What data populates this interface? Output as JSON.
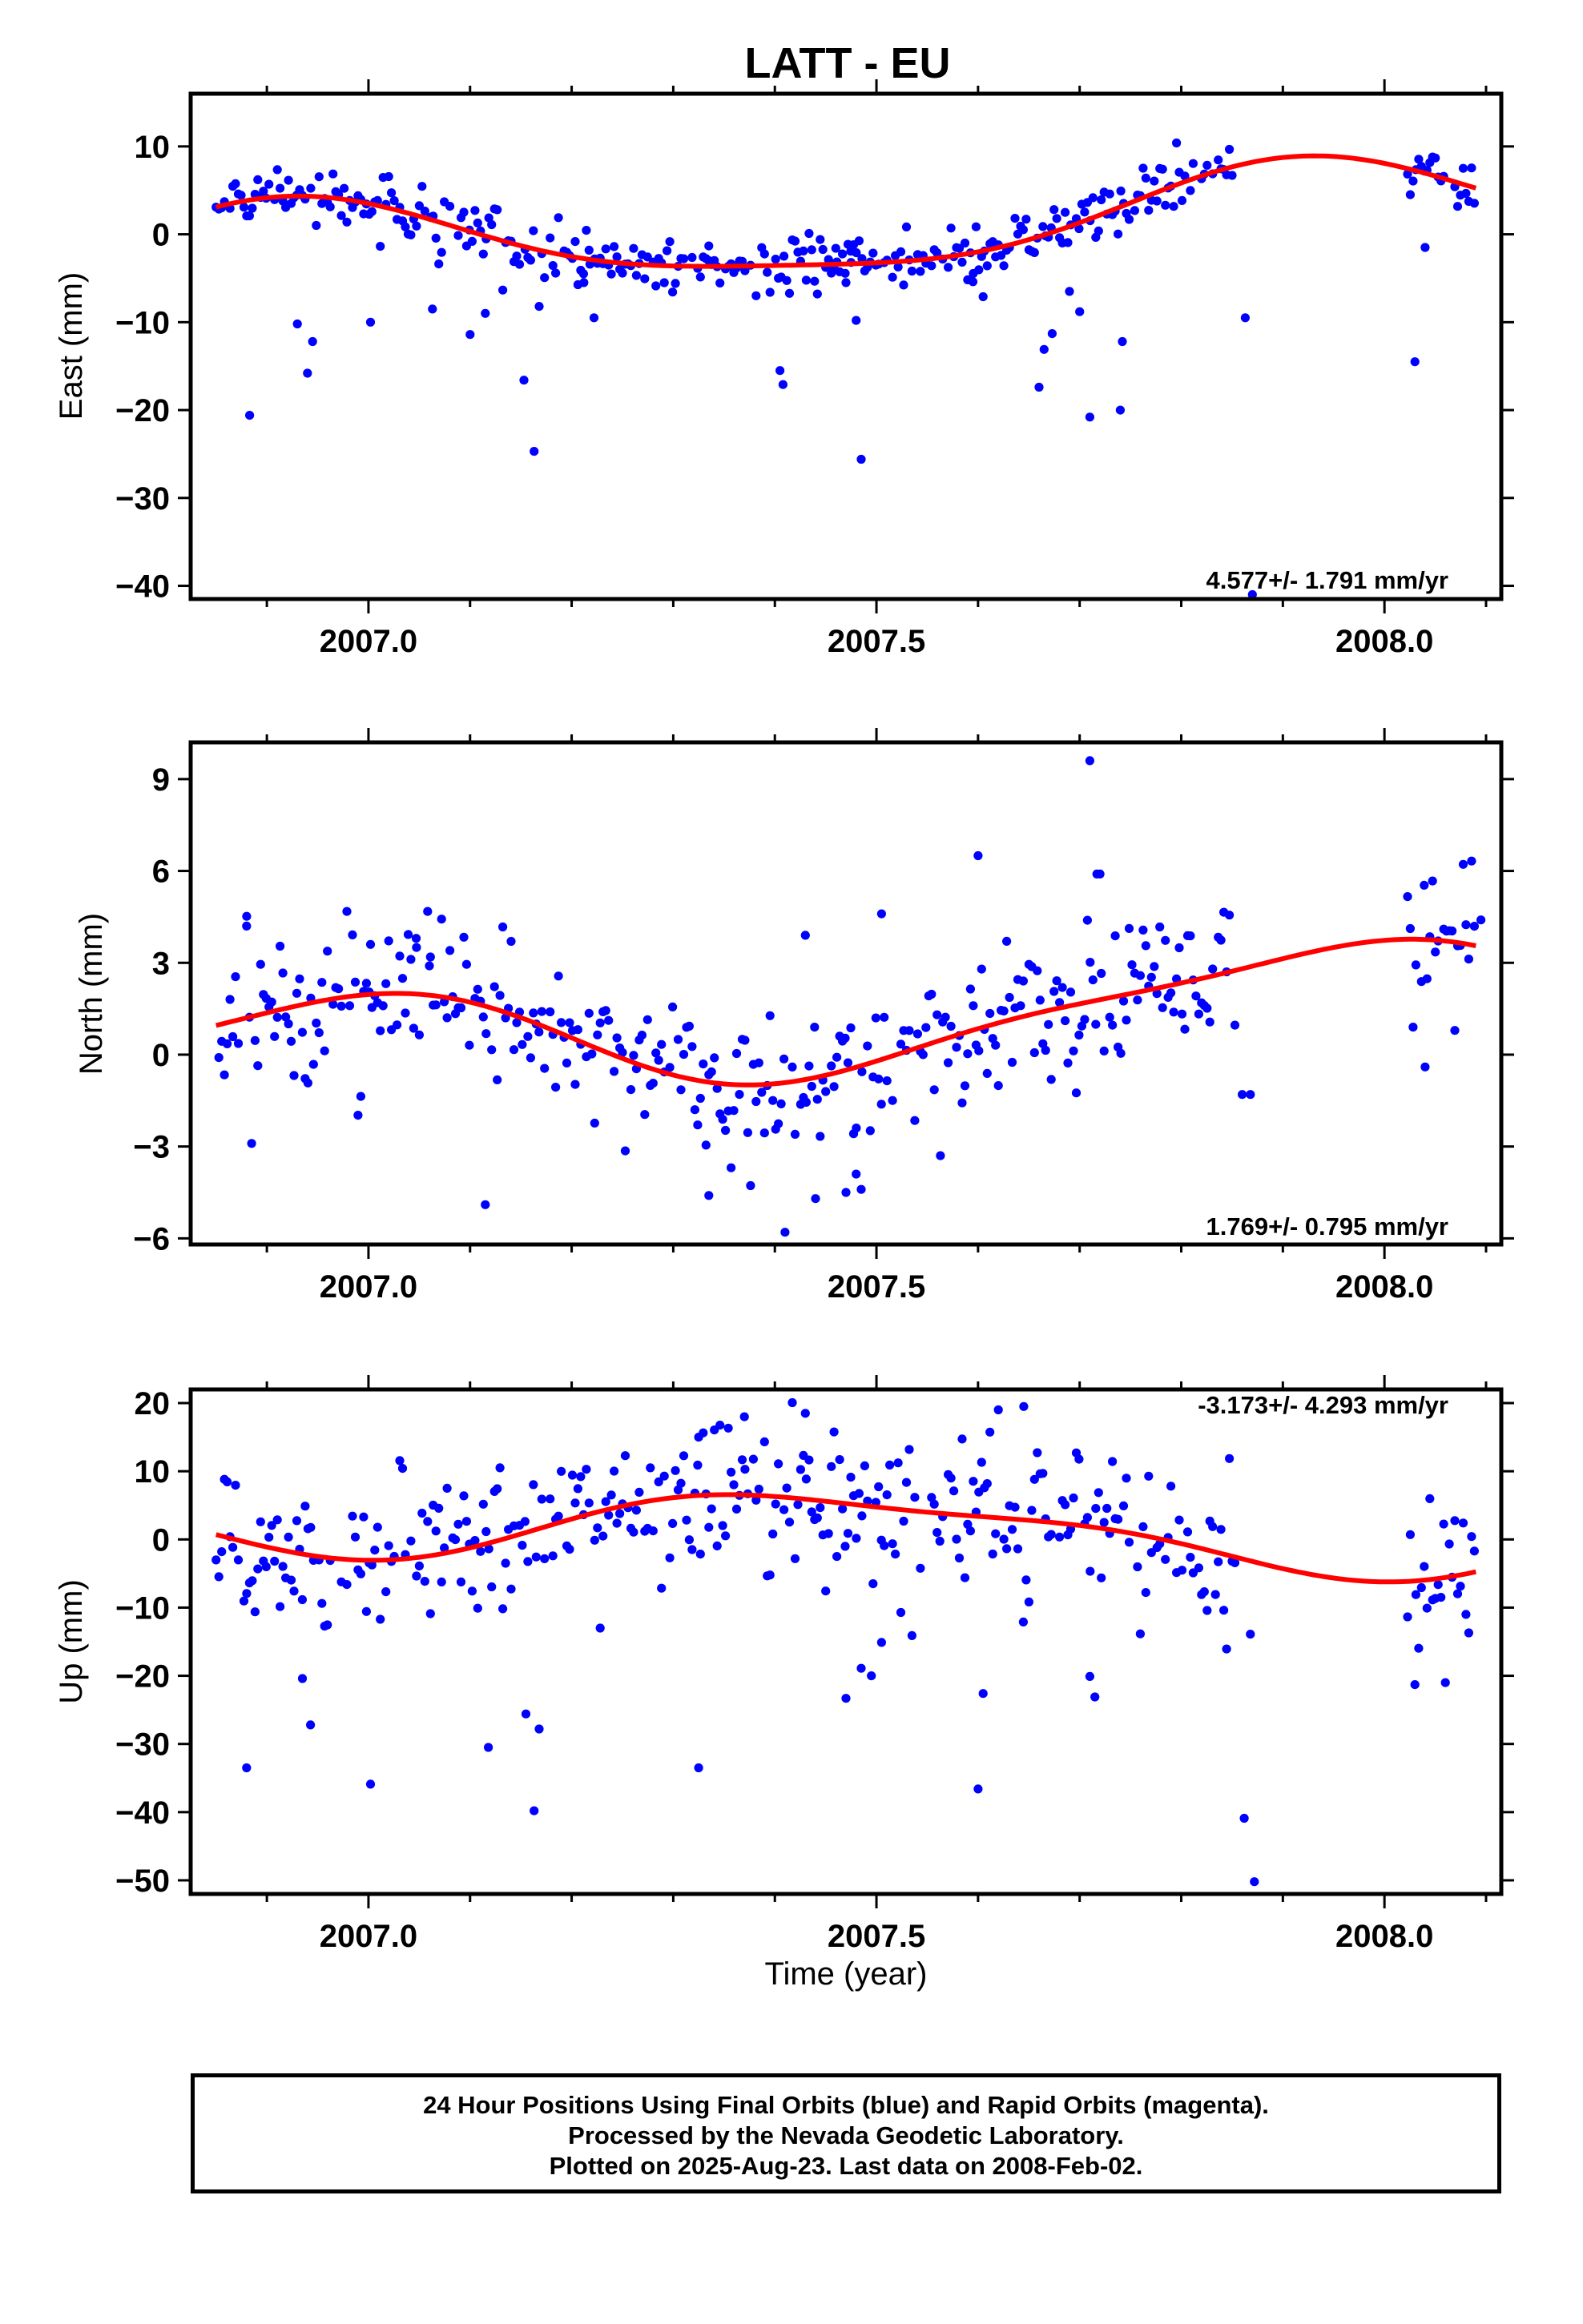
{
  "figure": {
    "title": "LATT - EU",
    "xlabel": "Time (year)"
  },
  "caption": {
    "line1": "24 Hour Positions Using Final Orbits (blue) and Rapid Orbits (magenta).",
    "line2": "Processed by the Nevada Geodetic Laboratory.",
    "line3": "Plotted on 2025-Aug-23. Last data on 2008-Feb-02."
  },
  "colors": {
    "points": "#0000ff",
    "model": "#ff0000",
    "axes": "#000000"
  },
  "chart_data": [
    {
      "type": "scatter",
      "ylabel": "East (mm)",
      "xlim": [
        2006.825,
        2008.115
      ],
      "ylim": [
        -41.5,
        16
      ],
      "xticks": [
        2007.0,
        2007.5,
        2008.0
      ],
      "xtick_labels": [
        "2007.0",
        "2007.5",
        "2008.0"
      ],
      "yticks": [
        10,
        0,
        -10,
        -20,
        -30,
        -40
      ],
      "ytick_labels": [
        "10",
        "0",
        "−10",
        "−20",
        "−30",
        "−40"
      ],
      "rate_label": "4.577+/- 1.791 mm/yr",
      "rate_position": "bottom-right",
      "points": {
        "x0": 2006.85,
        "x1": 2007.855,
        "x2": 2008.02,
        "x3": 2008.09,
        "gap_start": 2007.86,
        "gap_end": 2008.01,
        "step": 0.00274,
        "noise": 1.6
      },
      "outliers": [
        [
          2006.883,
          -20.6
        ],
        [
          2006.93,
          -10.2
        ],
        [
          2006.94,
          -15.8
        ],
        [
          2006.945,
          -12.2
        ],
        [
          2007.002,
          -10.0
        ],
        [
          2007.063,
          -8.5
        ],
        [
          2007.1,
          -11.4
        ],
        [
          2007.115,
          -9.0
        ],
        [
          2007.153,
          -16.6
        ],
        [
          2007.163,
          -24.7
        ],
        [
          2007.168,
          -8.2
        ],
        [
          2007.212,
          -5.5
        ],
        [
          2007.222,
          -9.5
        ],
        [
          2007.218,
          -3.4
        ],
        [
          2007.335,
          -3.0
        ],
        [
          2007.405,
          -15.5
        ],
        [
          2007.408,
          -17.1
        ],
        [
          2007.46,
          -1.6
        ],
        [
          2007.47,
          -5.5
        ],
        [
          2007.48,
          -9.8
        ],
        [
          2007.485,
          -25.6
        ],
        [
          2007.475,
          -3.2
        ],
        [
          2007.595,
          -5.4
        ],
        [
          2007.605,
          -7.1
        ],
        [
          2007.66,
          -17.4
        ],
        [
          2007.665,
          -13.1
        ],
        [
          2007.673,
          -11.3
        ],
        [
          2007.69,
          -6.5
        ],
        [
          2007.7,
          -8.8
        ],
        [
          2007.71,
          -20.8
        ],
        [
          2007.74,
          -20.0
        ],
        [
          2007.742,
          -12.2
        ],
        [
          2007.863,
          -9.5
        ],
        [
          2007.87,
          -41.0
        ],
        [
          2008.03,
          -14.5
        ],
        [
          2008.04,
          -1.5
        ]
      ],
      "model": {
        "offset": 0.25,
        "rate": 4.577,
        "c_annual": -5.0,
        "s_annual": -0.8,
        "c_semi": 1.2,
        "s_semi": 0.2,
        "t0": 2007.4
      }
    },
    {
      "type": "scatter",
      "ylabel": "North (mm)",
      "xlim": [
        2006.825,
        2008.115
      ],
      "ylim": [
        -6.2,
        10.2
      ],
      "xticks": [
        2007.0,
        2007.5,
        2008.0
      ],
      "xtick_labels": [
        "2007.0",
        "2007.5",
        "2008.0"
      ],
      "yticks": [
        9,
        6,
        3,
        0,
        -3,
        -6
      ],
      "ytick_labels": [
        "9",
        "6",
        "3",
        "0",
        "−3",
        "−6"
      ],
      "rate_label": "1.769+/- 0.795 mm/yr",
      "rate_position": "bottom-right",
      "points": {
        "x0": 2006.85,
        "x1": 2007.855,
        "x2": 2008.02,
        "x3": 2008.09,
        "gap_start": 2007.86,
        "gap_end": 2008.01,
        "step": 0.00274,
        "noise": 1.3
      },
      "outliers": [
        [
          2006.88,
          4.2
        ],
        [
          2006.885,
          -2.9
        ],
        [
          2007.002,
          3.6
        ],
        [
          2007.047,
          3.8
        ],
        [
          2007.06,
          2.9
        ],
        [
          2007.115,
          -4.9
        ],
        [
          2007.335,
          -4.6
        ],
        [
          2007.41,
          -5.8
        ],
        [
          2007.43,
          3.9
        ],
        [
          2007.44,
          -4.7
        ],
        [
          2007.47,
          -4.5
        ],
        [
          2007.48,
          -3.9
        ],
        [
          2007.485,
          -4.4
        ],
        [
          2007.505,
          4.6
        ],
        [
          2007.563,
          -3.3
        ],
        [
          2007.6,
          6.5
        ],
        [
          2007.71,
          9.6
        ],
        [
          2007.717,
          5.9
        ],
        [
          2007.72,
          5.9
        ],
        [
          2007.86,
          -1.3
        ],
        [
          2007.868,
          -1.3
        ],
        [
          2008.04,
          -0.4
        ],
        [
          2008.095,
          4.4
        ]
      ],
      "model": {
        "offset": 0.95,
        "rate": 1.769,
        "c_annual": -1.6,
        "s_annual": -0.4,
        "c_semi": -0.3,
        "s_semi": 0.3,
        "t0": 2007.4
      }
    },
    {
      "type": "scatter",
      "ylabel": "Up (mm)",
      "xlim": [
        2006.825,
        2008.115
      ],
      "ylim": [
        -52,
        22
      ],
      "xticks": [
        2007.0,
        2007.5,
        2008.0
      ],
      "xtick_labels": [
        "2007.0",
        "2007.5",
        "2008.0"
      ],
      "yticks": [
        20,
        10,
        0,
        -10,
        -20,
        -30,
        -40,
        -50
      ],
      "ytick_labels": [
        "20",
        "10",
        "0",
        "−10",
        "−20",
        "−30",
        "−40",
        "−50"
      ],
      "rate_label": "-3.173+/- 4.293 mm/yr",
      "rate_position": "top-right",
      "points": {
        "x0": 2006.85,
        "x1": 2007.855,
        "x2": 2008.02,
        "x3": 2008.09,
        "gap_start": 2007.86,
        "gap_end": 2008.01,
        "step": 0.00274,
        "noise": 6.0
      },
      "outliers": [
        [
          2006.88,
          -33.5
        ],
        [
          2006.935,
          -20.4
        ],
        [
          2006.943,
          -27.2
        ],
        [
          2007.002,
          -35.9
        ],
        [
          2007.118,
          -30.5
        ],
        [
          2007.155,
          -25.6
        ],
        [
          2007.163,
          -39.8
        ],
        [
          2007.168,
          -27.8
        ],
        [
          2007.325,
          -33.5
        ],
        [
          2007.47,
          -23.3
        ],
        [
          2007.485,
          -18.9
        ],
        [
          2007.495,
          -20.0
        ],
        [
          2007.505,
          -15.1
        ],
        [
          2007.6,
          -36.6
        ],
        [
          2007.605,
          -22.6
        ],
        [
          2007.71,
          -20.1
        ],
        [
          2007.715,
          -23.1
        ],
        [
          2007.862,
          -40.9
        ],
        [
          2007.868,
          -13.9
        ],
        [
          2007.872,
          -50.2
        ],
        [
          2008.03,
          -21.3
        ],
        [
          2008.06,
          -21.0
        ],
        [
          2007.325,
          15.0
        ],
        [
          2007.37,
          18.0
        ],
        [
          2007.43,
          18.5
        ],
        [
          2007.62,
          19.0
        ],
        [
          2007.645,
          19.5
        ]
      ],
      "model": {
        "offset": 1.8,
        "rate": -3.173,
        "c_annual": 4.5,
        "s_annual": 1.8,
        "c_semi": 0.0,
        "s_semi": -1.5,
        "t0": 2007.4
      }
    }
  ]
}
